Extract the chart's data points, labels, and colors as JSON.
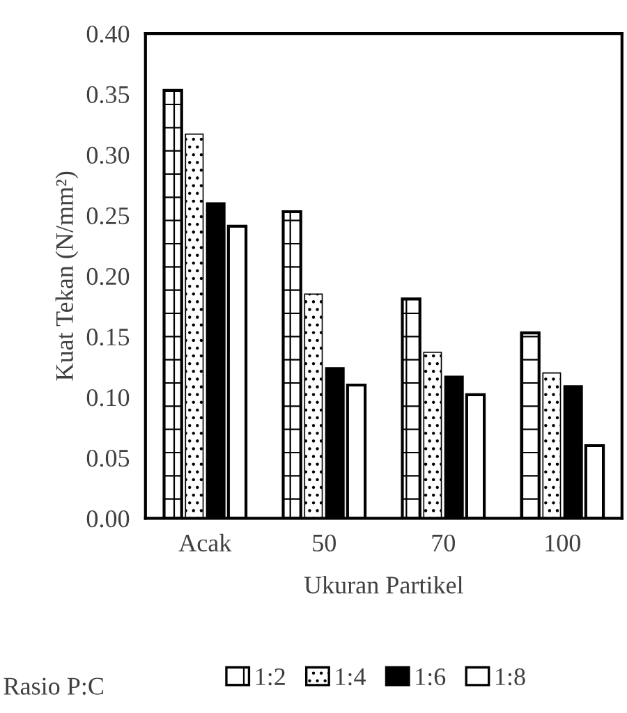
{
  "chart_data": {
    "type": "bar",
    "xlabel": "Ukuran Partikel",
    "ylabel": "Kuat Tekan (N/mm²)",
    "legend_title": "Rasio P:C",
    "categories": [
      "Acak",
      "50",
      "70",
      "100"
    ],
    "series": [
      {
        "name": "1:2",
        "color": "#ffffff",
        "values": [
          0.353,
          0.253,
          0.181,
          0.153
        ]
      },
      {
        "name": "1:4",
        "color": "#ffffff",
        "values": [
          0.317,
          0.185,
          0.137,
          0.12
        ]
      },
      {
        "name": "1:6",
        "color": "#000000",
        "values": [
          0.26,
          0.124,
          0.117,
          0.109
        ]
      },
      {
        "name": "1:8",
        "color": "#ffffff",
        "values": [
          0.241,
          0.11,
          0.102,
          0.06
        ]
      }
    ],
    "ylim": [
      0,
      0.4
    ],
    "yticks": [
      {
        "value": 0,
        "label": "0.00"
      },
      {
        "value": 0.05,
        "label": "0.05"
      },
      {
        "value": 0.1,
        "label": "0.10"
      },
      {
        "value": 0.15,
        "label": "0.15"
      },
      {
        "value": 0.2,
        "label": "0.20"
      },
      {
        "value": 0.25,
        "label": "0.25"
      },
      {
        "value": 0.3,
        "label": "0.30"
      },
      {
        "value": 0.35,
        "label": "0.35"
      },
      {
        "value": 0.4,
        "label": "0.40"
      }
    ],
    "grid": false,
    "legend": "bottom"
  }
}
